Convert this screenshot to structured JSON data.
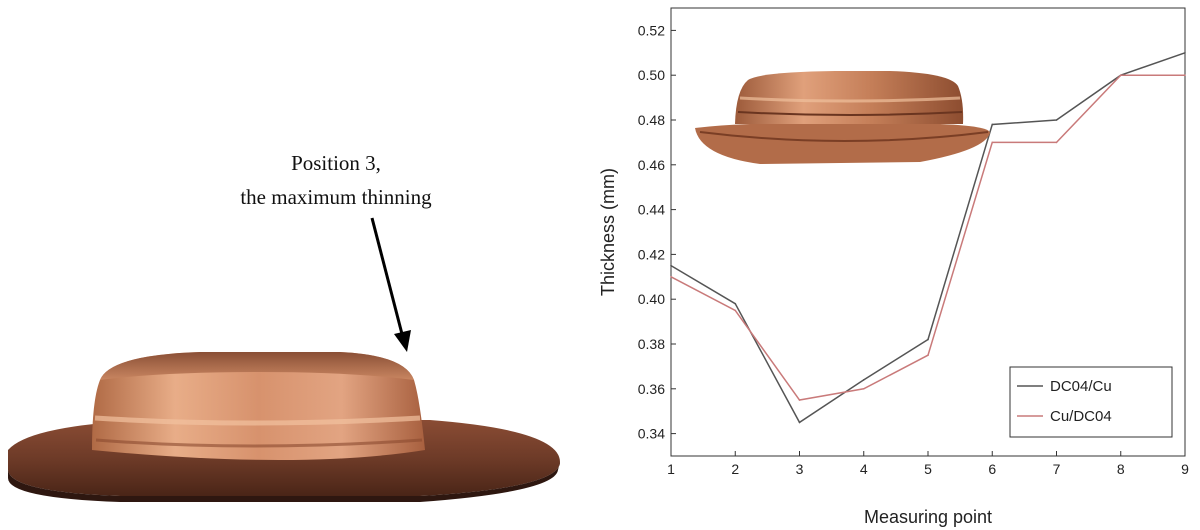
{
  "figure": {
    "annotation_line1": "Position 3,",
    "annotation_line2": "the maximum thinning"
  },
  "chart_data": {
    "type": "line",
    "xlabel": "Measuring point",
    "ylabel": "Thickness (mm)",
    "x": [
      1,
      2,
      3,
      4,
      5,
      6,
      7,
      8,
      9
    ],
    "xlim": [
      1,
      9
    ],
    "ylim": [
      0.33,
      0.53
    ],
    "xticks": [
      "1",
      "2",
      "3",
      "4",
      "5",
      "6",
      "7",
      "8",
      "9"
    ],
    "yticks": [
      "0.34",
      "0.36",
      "0.38",
      "0.40",
      "0.42",
      "0.44",
      "0.46",
      "0.48",
      "0.50",
      "0.52"
    ],
    "grid": false,
    "legend_position": "bottom-right",
    "series": [
      {
        "name": "DC04/Cu",
        "color": "#555555",
        "values": [
          0.415,
          0.398,
          0.345,
          0.364,
          0.382,
          0.478,
          0.48,
          0.5,
          0.51
        ]
      },
      {
        "name": "Cu/DC04",
        "color": "#c97a7a",
        "values": [
          0.41,
          0.395,
          0.355,
          0.36,
          0.375,
          0.47,
          0.47,
          0.5,
          0.5
        ]
      }
    ]
  },
  "colors": {
    "copper_light": "#e8ad88",
    "copper_mid": "#c0774f",
    "copper_dark": "#5a2e1c"
  }
}
